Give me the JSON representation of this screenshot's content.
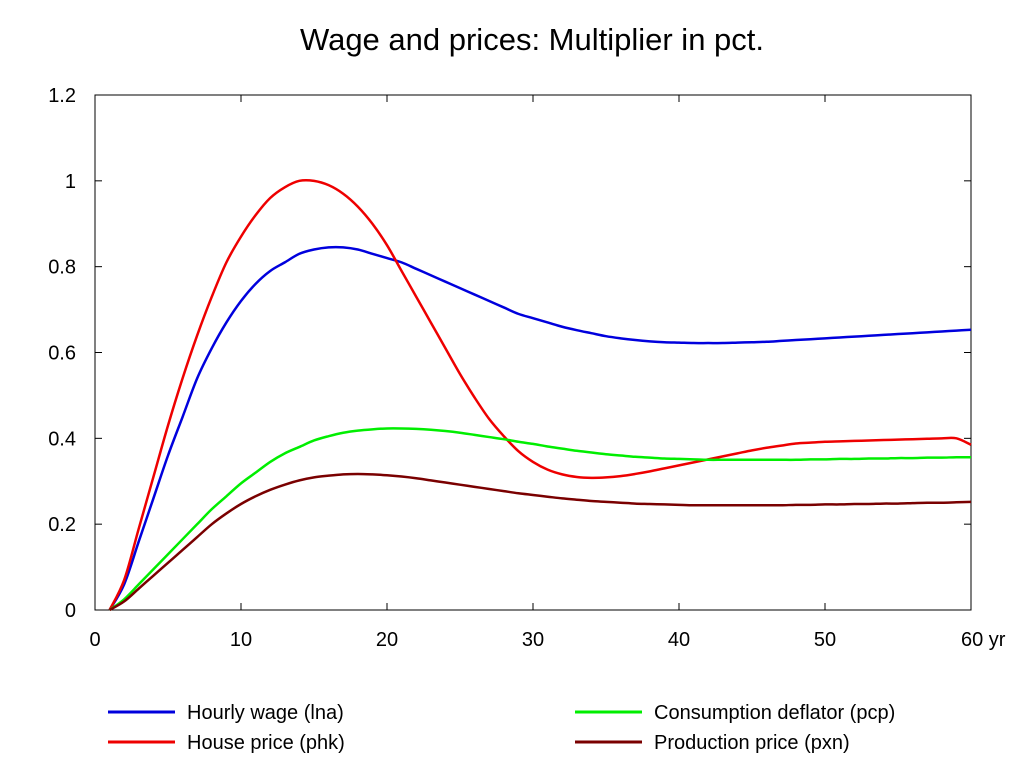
{
  "chart_data": {
    "type": "line",
    "title": "Wage and prices: Multiplier in pct.",
    "xlabel": "",
    "ylabel": "",
    "x_unit": "yr",
    "xlim": [
      0,
      60
    ],
    "ylim": [
      0,
      1.2
    ],
    "x_ticks": [
      0,
      10,
      20,
      30,
      40,
      50,
      60
    ],
    "x_tick_labels": [
      "0",
      "10",
      "20",
      "30",
      "40",
      "50",
      "60 yr"
    ],
    "y_ticks": [
      0,
      0.2,
      0.4,
      0.6,
      0.8,
      1.0,
      1.2
    ],
    "y_tick_labels": [
      "0",
      "0.2",
      "0.4",
      "0.6",
      "0.8",
      "1",
      "1.2"
    ],
    "grid": false,
    "legend_position": "bottom",
    "x": [
      1,
      2,
      3,
      4,
      5,
      6,
      7,
      8,
      9,
      10,
      11,
      12,
      13,
      14,
      15,
      16,
      17,
      18,
      19,
      20,
      21,
      22,
      23,
      24,
      25,
      26,
      27,
      28,
      29,
      30,
      31,
      32,
      33,
      34,
      35,
      36,
      37,
      38,
      39,
      40,
      41,
      42,
      43,
      44,
      45,
      46,
      47,
      48,
      49,
      50,
      51,
      52,
      53,
      54,
      55,
      56,
      57,
      58,
      59,
      60
    ],
    "series": [
      {
        "name": "Hourly wage (lna)",
        "color": "#0000dd",
        "values": [
          0.0,
          0.06,
          0.16,
          0.26,
          0.36,
          0.45,
          0.54,
          0.61,
          0.67,
          0.72,
          0.76,
          0.79,
          0.81,
          0.83,
          0.84,
          0.845,
          0.845,
          0.84,
          0.83,
          0.82,
          0.81,
          0.795,
          0.78,
          0.765,
          0.75,
          0.735,
          0.72,
          0.705,
          0.69,
          0.68,
          0.67,
          0.66,
          0.652,
          0.645,
          0.638,
          0.633,
          0.629,
          0.626,
          0.624,
          0.623,
          0.622,
          0.622,
          0.622,
          0.623,
          0.624,
          0.625,
          0.627,
          0.629,
          0.631,
          0.633,
          0.635,
          0.637,
          0.639,
          0.641,
          0.643,
          0.645,
          0.647,
          0.649,
          0.651,
          0.653
        ]
      },
      {
        "name": "House price (phk)",
        "color": "#ee0000",
        "values": [
          0.0,
          0.07,
          0.19,
          0.31,
          0.43,
          0.54,
          0.64,
          0.73,
          0.81,
          0.87,
          0.92,
          0.96,
          0.985,
          1.0,
          1.0,
          0.99,
          0.97,
          0.94,
          0.9,
          0.85,
          0.79,
          0.73,
          0.67,
          0.61,
          0.55,
          0.495,
          0.445,
          0.405,
          0.37,
          0.345,
          0.327,
          0.316,
          0.31,
          0.308,
          0.309,
          0.312,
          0.317,
          0.323,
          0.33,
          0.337,
          0.344,
          0.351,
          0.358,
          0.365,
          0.372,
          0.378,
          0.383,
          0.388,
          0.39,
          0.392,
          0.393,
          0.394,
          0.395,
          0.396,
          0.397,
          0.398,
          0.399,
          0.4,
          0.4,
          0.385
        ]
      },
      {
        "name": "Consumption deflator (pcp)",
        "color": "#00ee00",
        "values": [
          0.0,
          0.025,
          0.06,
          0.095,
          0.13,
          0.165,
          0.2,
          0.235,
          0.265,
          0.295,
          0.32,
          0.345,
          0.365,
          0.38,
          0.395,
          0.405,
          0.413,
          0.418,
          0.421,
          0.423,
          0.423,
          0.422,
          0.42,
          0.417,
          0.413,
          0.408,
          0.403,
          0.398,
          0.392,
          0.387,
          0.381,
          0.376,
          0.371,
          0.367,
          0.363,
          0.36,
          0.357,
          0.355,
          0.353,
          0.352,
          0.351,
          0.35,
          0.35,
          0.35,
          0.35,
          0.35,
          0.35,
          0.35,
          0.351,
          0.351,
          0.352,
          0.352,
          0.353,
          0.353,
          0.354,
          0.354,
          0.355,
          0.355,
          0.356,
          0.356
        ]
      },
      {
        "name": "Production price (pxn)",
        "color": "#7a0000",
        "values": [
          0.0,
          0.02,
          0.05,
          0.08,
          0.11,
          0.14,
          0.17,
          0.2,
          0.225,
          0.247,
          0.265,
          0.28,
          0.292,
          0.302,
          0.309,
          0.313,
          0.316,
          0.317,
          0.316,
          0.314,
          0.311,
          0.307,
          0.302,
          0.297,
          0.292,
          0.287,
          0.282,
          0.277,
          0.272,
          0.268,
          0.264,
          0.26,
          0.257,
          0.254,
          0.252,
          0.25,
          0.248,
          0.247,
          0.246,
          0.245,
          0.244,
          0.244,
          0.244,
          0.244,
          0.244,
          0.244,
          0.244,
          0.245,
          0.245,
          0.246,
          0.246,
          0.247,
          0.247,
          0.248,
          0.248,
          0.249,
          0.25,
          0.25,
          0.251,
          0.252
        ]
      }
    ]
  }
}
